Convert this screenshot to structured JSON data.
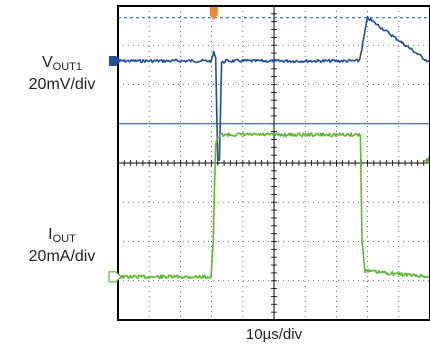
{
  "labels": {
    "vout_name": "V",
    "vout_sub": "OUT1",
    "vout_scale": "20mV/div",
    "iout_name": "I",
    "iout_sub": "OUT",
    "iout_scale": "20mA/div",
    "time_scale": "10µs/div"
  },
  "colors": {
    "vout_trace": "#1f4e9e",
    "iout_trace": "#5cb82c",
    "trigger_marker": "#f08a24",
    "grid": "#000000",
    "background": "#ffffff"
  },
  "chart_data": {
    "type": "line",
    "grid_divisions": {
      "x": 10,
      "y": 8
    },
    "grid": true,
    "x_axis": {
      "unit": "div",
      "range": [
        0,
        10
      ],
      "label": "10µs/div"
    },
    "series": [
      {
        "name": "VOUT1",
        "unit": "div",
        "points": [
          [
            0,
            6.6
          ],
          [
            3.0,
            6.6
          ],
          [
            3.07,
            6.85
          ],
          [
            3.13,
            6.65
          ],
          [
            3.2,
            4.06
          ],
          [
            3.25,
            4.1
          ],
          [
            3.32,
            6.55
          ],
          [
            3.45,
            6.6
          ],
          [
            7.7,
            6.6
          ],
          [
            7.75,
            6.65
          ],
          [
            8.0,
            7.7
          ],
          [
            10.0,
            6.55
          ]
        ],
        "ref_lines_div": [
          7.7,
          5.0
        ]
      },
      {
        "name": "IOUT",
        "unit": "div",
        "points": [
          [
            0,
            1.1
          ],
          [
            2.98,
            1.1
          ],
          [
            3.05,
            2.0
          ],
          [
            3.13,
            4.5
          ],
          [
            3.28,
            4.72
          ],
          [
            7.77,
            4.72
          ],
          [
            7.82,
            2.0
          ],
          [
            7.92,
            1.25
          ],
          [
            10.0,
            1.1
          ]
        ]
      }
    ]
  }
}
